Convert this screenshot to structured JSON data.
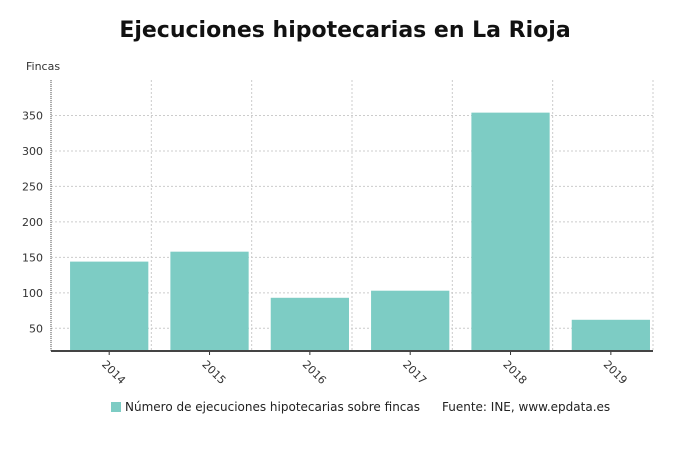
{
  "chart_data": {
    "type": "bar",
    "title": "Ejecuciones hipotecarias en La Rioja",
    "ylabel": "Fincas",
    "xlabel": "",
    "categories": [
      "2014",
      "2015",
      "2016",
      "2017",
      "2018",
      "2019"
    ],
    "series": [
      {
        "name": "Número de ejecuciones hipotecarias sobre fincas",
        "values": [
          144,
          158,
          93,
          103,
          354,
          62
        ]
      }
    ],
    "ylim": [
      18,
      400
    ],
    "yticks": [
      50,
      100,
      150,
      200,
      250,
      300,
      350
    ],
    "grid": true,
    "legend": "bottom",
    "color": "#7dccc4",
    "source": "Fuente: INE, www.epdata.es"
  }
}
